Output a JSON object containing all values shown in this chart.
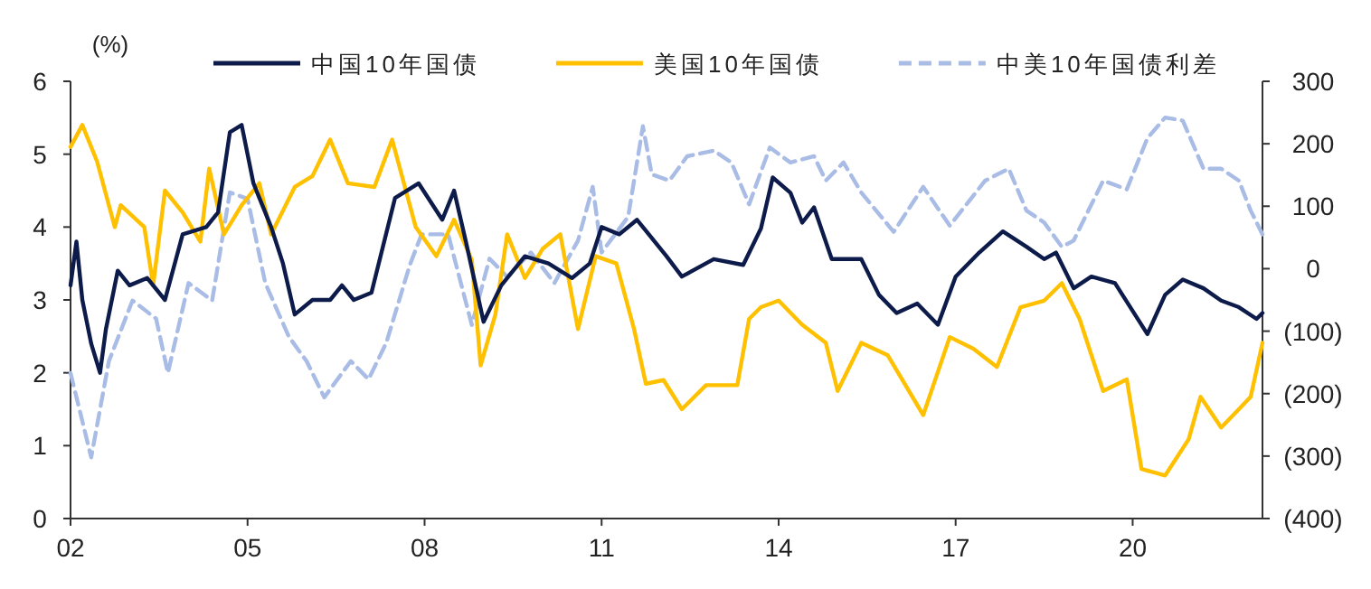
{
  "chart_data": {
    "type": "line",
    "ylabel": "(%)",
    "legend": "top",
    "grid": false,
    "xlim": [
      2002,
      2022.2
    ],
    "xticks": [
      {
        "value": 2002,
        "label": "02"
      },
      {
        "value": 2005,
        "label": "05"
      },
      {
        "value": 2008,
        "label": "08"
      },
      {
        "value": 2011,
        "label": "11"
      },
      {
        "value": 2014,
        "label": "14"
      },
      {
        "value": 2017,
        "label": "17"
      },
      {
        "value": 2020,
        "label": "20"
      }
    ],
    "ylim": [
      0,
      6
    ],
    "yticks": [
      0,
      1,
      2,
      3,
      4,
      5,
      6
    ],
    "y2lim": [
      -400,
      300
    ],
    "y2ticks": [
      {
        "value": -400,
        "label": "(400)"
      },
      {
        "value": -300,
        "label": "(300)"
      },
      {
        "value": -200,
        "label": "(200)"
      },
      {
        "value": -100,
        "label": "(100)"
      },
      0,
      100,
      200,
      300
    ],
    "series": [
      {
        "name": "中国10年国债",
        "color": "#0d1b4b",
        "line_style": "solid",
        "x": [
          2002.0,
          2002.1,
          2002.2,
          2002.35,
          2002.5,
          2002.6,
          2002.8,
          2003.0,
          2003.3,
          2003.6,
          2003.9,
          2004.3,
          2004.5,
          2004.7,
          2004.9,
          2005.1,
          2005.4,
          2005.6,
          2005.8,
          2006.1,
          2006.4,
          2006.6,
          2006.8,
          2007.1,
          2007.5,
          2007.9,
          2008.3,
          2008.5,
          2008.7,
          2009.0,
          2009.3,
          2009.7,
          2010.1,
          2010.5,
          2010.8,
          2011.0,
          2011.3,
          2011.6,
          2012.1,
          2012.36,
          2012.9,
          2013.4,
          2013.7,
          2013.9,
          2014.2,
          2014.4,
          2014.6,
          2014.9,
          2015.4,
          2015.7,
          2016.0,
          2016.35,
          2016.7,
          2017.0,
          2017.4,
          2017.8,
          2018.2,
          2018.5,
          2018.7,
          2019.0,
          2019.3,
          2019.7,
          2020.25,
          2020.55,
          2020.85,
          2021.2,
          2021.5,
          2021.8,
          2022.1,
          2022.2
        ],
        "values": [
          3.2,
          3.8,
          3.0,
          2.4,
          2.0,
          2.6,
          3.4,
          3.2,
          3.3,
          3.0,
          3.9,
          4.0,
          4.2,
          5.3,
          5.4,
          4.6,
          4.0,
          3.5,
          2.8,
          3.0,
          3.0,
          3.2,
          3.0,
          3.1,
          4.4,
          4.6,
          4.1,
          4.5,
          3.8,
          2.7,
          3.2,
          3.6,
          3.5,
          3.3,
          3.5,
          4.0,
          3.9,
          4.1,
          3.6,
          3.32,
          3.56,
          3.48,
          3.98,
          4.68,
          4.47,
          4.06,
          4.27,
          3.56,
          3.56,
          3.07,
          2.82,
          2.95,
          2.66,
          3.32,
          3.65,
          3.94,
          3.73,
          3.56,
          3.65,
          3.16,
          3.32,
          3.23,
          2.53,
          3.07,
          3.28,
          3.16,
          2.99,
          2.9,
          2.74,
          2.82
        ]
      },
      {
        "name": "美国10年国债",
        "color": "#ffc000",
        "line_style": "solid",
        "x": [
          2002.0,
          2002.2,
          2002.45,
          2002.75,
          2002.85,
          2003.25,
          2003.4,
          2003.6,
          2003.9,
          2004.2,
          2004.35,
          2004.6,
          2004.9,
          2005.2,
          2005.4,
          2005.8,
          2006.1,
          2006.4,
          2006.7,
          2007.15,
          2007.45,
          2007.85,
          2008.2,
          2008.5,
          2008.8,
          2008.95,
          2009.2,
          2009.4,
          2009.7,
          2010.0,
          2010.3,
          2010.6,
          2010.9,
          2011.25,
          2011.55,
          2011.75,
          2012.05,
          2012.36,
          2012.77,
          2013.3,
          2013.5,
          2013.7,
          2014.0,
          2014.4,
          2014.8,
          2015.0,
          2015.4,
          2015.85,
          2016.15,
          2016.45,
          2016.9,
          2017.3,
          2017.7,
          2018.1,
          2018.5,
          2018.8,
          2019.1,
          2019.5,
          2019.9,
          2020.15,
          2020.55,
          2020.95,
          2021.15,
          2021.5,
          2021.8,
          2022.0,
          2022.2
        ],
        "values": [
          5.1,
          5.4,
          4.9,
          4.0,
          4.3,
          4.0,
          3.2,
          4.5,
          4.2,
          3.8,
          4.8,
          3.9,
          4.3,
          4.6,
          3.9,
          4.55,
          4.7,
          5.2,
          4.6,
          4.55,
          5.2,
          4.0,
          3.6,
          4.1,
          3.55,
          2.1,
          2.8,
          3.9,
          3.3,
          3.7,
          3.9,
          2.6,
          3.6,
          3.5,
          2.6,
          1.85,
          1.9,
          1.5,
          1.83,
          1.83,
          2.74,
          2.9,
          2.99,
          2.66,
          2.41,
          1.75,
          2.41,
          2.24,
          1.83,
          1.42,
          2.49,
          2.33,
          2.08,
          2.9,
          2.99,
          3.23,
          2.74,
          1.75,
          1.91,
          0.68,
          0.59,
          1.09,
          1.67,
          1.25,
          1.5,
          1.67,
          2.41
        ]
      },
      {
        "name": "中美10年国债利差",
        "color": "#a9bce6",
        "line_style": "dashed",
        "axis": "y2",
        "x": [
          2002.0,
          2002.35,
          2002.65,
          2003.05,
          2003.45,
          2003.65,
          2004.0,
          2004.4,
          2004.7,
          2005.0,
          2005.3,
          2005.7,
          2006.0,
          2006.3,
          2006.75,
          2007.05,
          2007.35,
          2007.75,
          2007.95,
          2008.4,
          2008.8,
          2009.1,
          2009.4,
          2009.8,
          2010.2,
          2010.6,
          2010.85,
          2011.0,
          2011.45,
          2011.7,
          2011.85,
          2012.15,
          2012.45,
          2012.9,
          2013.2,
          2013.5,
          2013.85,
          2014.2,
          2014.6,
          2014.8,
          2015.1,
          2015.4,
          2015.95,
          2016.45,
          2016.9,
          2017.5,
          2017.9,
          2018.2,
          2018.5,
          2018.8,
          2019.0,
          2019.5,
          2019.9,
          2020.25,
          2020.55,
          2020.85,
          2021.2,
          2021.5,
          2021.8,
          2022.0,
          2022.2
        ],
        "values": [
          -167,
          -302,
          -148,
          -51,
          -80,
          -167,
          -23,
          -51,
          122,
          112,
          -23,
          -109,
          -148,
          -206,
          -148,
          -177,
          -119,
          6,
          55,
          55,
          -90,
          16,
          -13,
          26,
          -23,
          45,
          131,
          26,
          83,
          228,
          151,
          141,
          180,
          189,
          170,
          103,
          194,
          170,
          180,
          141,
          170,
          122,
          59,
          131,
          69,
          141,
          160,
          93,
          74,
          35,
          45,
          141,
          127,
          209,
          242,
          237,
          160,
          160,
          141,
          93,
          55
        ]
      }
    ]
  }
}
